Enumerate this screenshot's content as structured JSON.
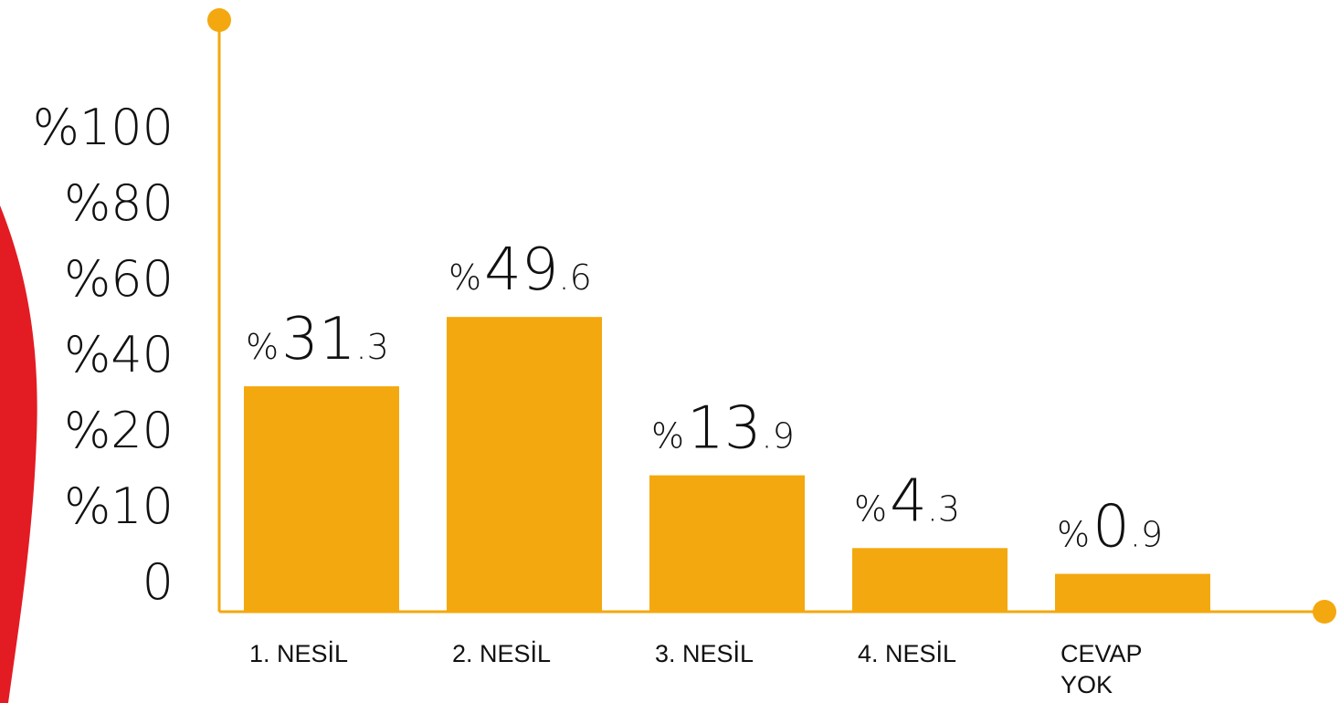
{
  "colors": {
    "bar": "#f4a80f",
    "axis": "#f4a80f",
    "accent_shape": "#e31b23",
    "text": "#111111"
  },
  "chart_data": {
    "type": "bar",
    "categories": [
      "1. NESİL",
      "2. NESİL",
      "3. NESİL",
      "4. NESİL",
      "CEVAP YOK"
    ],
    "values": [
      31.3,
      49.6,
      13.9,
      4.3,
      0.9
    ],
    "data_labels": [
      {
        "prefix": "%",
        "integer": "31",
        "decimal": ".3"
      },
      {
        "prefix": "%",
        "integer": "49",
        "decimal": ".6"
      },
      {
        "prefix": "%",
        "integer": "13",
        "decimal": ".9"
      },
      {
        "prefix": "%",
        "integer": "4",
        "decimal": ".3"
      },
      {
        "prefix": "%",
        "integer": "0",
        "decimal": ".9"
      }
    ],
    "y_tick_labels": [
      "0",
      "%10",
      "%20",
      "%40",
      "%60",
      "%80",
      "%100"
    ],
    "y_tick_values": [
      0,
      10,
      20,
      40,
      60,
      80,
      100
    ],
    "title": "",
    "xlabel": "",
    "ylabel": "",
    "grid": false,
    "legend": "none"
  }
}
